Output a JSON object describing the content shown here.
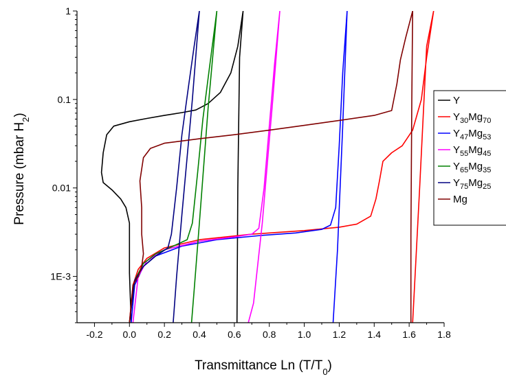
{
  "chart_data": {
    "type": "line",
    "title": "",
    "xlabel": {
      "main": "Transmittance Ln (T/T",
      "sub": "0",
      "tail": ")"
    },
    "ylabel": {
      "main": "Pressure (mbar H",
      "sub": "2",
      "tail": ")"
    },
    "xlim": [
      -0.3,
      1.8
    ],
    "ylim": [
      0.0003,
      1
    ],
    "yscale": "log",
    "xticks": [
      -0.2,
      0.0,
      0.2,
      0.4,
      0.6,
      0.8,
      1.0,
      1.2,
      1.4,
      1.6,
      1.8
    ],
    "xtick_labels": [
      "-0.2",
      "0.0",
      "0.2",
      "0.4",
      "0.6",
      "0.8",
      "1.0",
      "1.2",
      "1.4",
      "1.6",
      "1.8"
    ],
    "yticks": [
      0.001,
      0.01,
      0.1,
      1
    ],
    "ytick_labels": [
      "1E-3",
      "0.01",
      "0.1",
      "1"
    ],
    "grid": false,
    "legend_position": "right",
    "series": [
      {
        "name": "Y",
        "label_main": "Y",
        "label_parts": [],
        "color": "#000000",
        "points": [
          [
            0.01,
            0.0003
          ],
          [
            0.0,
            0.0011
          ],
          [
            0.0,
            0.002
          ],
          [
            0.0,
            0.004
          ],
          [
            -0.02,
            0.006
          ],
          [
            -0.05,
            0.0075
          ],
          [
            -0.1,
            0.0095
          ],
          [
            -0.15,
            0.0115
          ],
          [
            -0.16,
            0.015
          ],
          [
            -0.15,
            0.025
          ],
          [
            -0.13,
            0.04
          ],
          [
            -0.09,
            0.05
          ],
          [
            0.0,
            0.056
          ],
          [
            0.1,
            0.061
          ],
          [
            0.2,
            0.066
          ],
          [
            0.3,
            0.071
          ],
          [
            0.38,
            0.076
          ],
          [
            0.45,
            0.09
          ],
          [
            0.52,
            0.12
          ],
          [
            0.58,
            0.2
          ],
          [
            0.62,
            0.4
          ],
          [
            0.65,
            1.0
          ],
          [
            0.63,
            0.3
          ],
          [
            0.62,
            0.01
          ],
          [
            0.615,
            0.0003
          ]
        ]
      },
      {
        "name": "Y30Mg70",
        "label_main": "Y",
        "label_parts": [
          [
            "30",
            "sub"
          ],
          [
            "Mg",
            "main"
          ],
          [
            "70",
            "sub"
          ]
        ],
        "color": "#ff0000",
        "points": [
          [
            0.0,
            0.0003
          ],
          [
            0.02,
            0.0008
          ],
          [
            0.05,
            0.0012
          ],
          [
            0.1,
            0.0016
          ],
          [
            0.2,
            0.0021
          ],
          [
            0.4,
            0.0026
          ],
          [
            0.7,
            0.003
          ],
          [
            1.0,
            0.0033
          ],
          [
            1.2,
            0.0036
          ],
          [
            1.3,
            0.0039
          ],
          [
            1.38,
            0.0048
          ],
          [
            1.41,
            0.0075
          ],
          [
            1.43,
            0.012
          ],
          [
            1.45,
            0.02
          ],
          [
            1.5,
            0.025
          ],
          [
            1.56,
            0.03
          ],
          [
            1.62,
            0.045
          ],
          [
            1.67,
            0.1
          ],
          [
            1.7,
            0.3
          ],
          [
            1.74,
            1.0
          ],
          [
            1.7,
            0.4
          ],
          [
            1.66,
            0.01
          ],
          [
            1.62,
            0.0003
          ]
        ]
      },
      {
        "name": "Y47Mg53",
        "label_main": "Y",
        "label_parts": [
          [
            "47",
            "sub"
          ],
          [
            "Mg",
            "main"
          ],
          [
            "53",
            "sub"
          ]
        ],
        "color": "#0000ff",
        "points": [
          [
            0.01,
            0.0003
          ],
          [
            0.03,
            0.0008
          ],
          [
            0.08,
            0.0013
          ],
          [
            0.15,
            0.0017
          ],
          [
            0.3,
            0.0022
          ],
          [
            0.5,
            0.0026
          ],
          [
            0.75,
            0.0029
          ],
          [
            0.95,
            0.0031
          ],
          [
            1.1,
            0.0034
          ],
          [
            1.15,
            0.0038
          ],
          [
            1.18,
            0.006
          ],
          [
            1.2,
            0.03
          ],
          [
            1.22,
            0.2
          ],
          [
            1.245,
            1.0
          ],
          [
            1.22,
            0.05
          ],
          [
            1.19,
            0.002
          ],
          [
            1.165,
            0.0003
          ]
        ]
      },
      {
        "name": "Y55Mg45",
        "label_main": "Y",
        "label_parts": [
          [
            "55",
            "sub"
          ],
          [
            "Mg",
            "main"
          ],
          [
            "45",
            "sub"
          ]
        ],
        "color": "#ff00ff",
        "points": [
          [
            0.02,
            0.0003
          ],
          [
            0.05,
            0.001
          ],
          [
            0.1,
            0.0015
          ],
          [
            0.2,
            0.002
          ],
          [
            0.4,
            0.0025
          ],
          [
            0.6,
            0.0028
          ],
          [
            0.7,
            0.003
          ],
          [
            0.74,
            0.0035
          ],
          [
            0.77,
            0.01
          ],
          [
            0.8,
            0.05
          ],
          [
            0.83,
            0.25
          ],
          [
            0.86,
            1.0
          ],
          [
            0.82,
            0.1
          ],
          [
            0.76,
            0.004
          ],
          [
            0.71,
            0.0005
          ],
          [
            0.68,
            0.0003
          ]
        ]
      },
      {
        "name": "Y65Mg35",
        "label_main": "Y",
        "label_parts": [
          [
            "65",
            "sub"
          ],
          [
            "Mg",
            "main"
          ],
          [
            "35",
            "sub"
          ]
        ],
        "color": "#008000",
        "points": [
          [
            0.0,
            0.0003
          ],
          [
            0.03,
            0.0009
          ],
          [
            0.08,
            0.0014
          ],
          [
            0.15,
            0.0018
          ],
          [
            0.25,
            0.0022
          ],
          [
            0.33,
            0.0026
          ],
          [
            0.36,
            0.004
          ],
          [
            0.39,
            0.015
          ],
          [
            0.42,
            0.06
          ],
          [
            0.46,
            0.25
          ],
          [
            0.5,
            1.0
          ],
          [
            0.45,
            0.08
          ],
          [
            0.4,
            0.004
          ],
          [
            0.37,
            0.0007
          ],
          [
            0.355,
            0.0003
          ]
        ]
      },
      {
        "name": "Y75Mg25",
        "label_main": "Y",
        "label_parts": [
          [
            "75",
            "sub"
          ],
          [
            "Mg",
            "main"
          ],
          [
            "25",
            "sub"
          ]
        ],
        "color": "#000080",
        "points": [
          [
            0.0,
            0.0003
          ],
          [
            0.03,
            0.0009
          ],
          [
            0.08,
            0.0013
          ],
          [
            0.15,
            0.0017
          ],
          [
            0.22,
            0.0021
          ],
          [
            0.24,
            0.003
          ],
          [
            0.27,
            0.01
          ],
          [
            0.3,
            0.04
          ],
          [
            0.34,
            0.15
          ],
          [
            0.37,
            0.4
          ],
          [
            0.4,
            1.0
          ],
          [
            0.36,
            0.1
          ],
          [
            0.3,
            0.005
          ],
          [
            0.27,
            0.001
          ],
          [
            0.25,
            0.0003
          ]
        ]
      },
      {
        "name": "Mg",
        "label_main": "Mg",
        "label_parts": [],
        "color": "#800000",
        "points": [
          [
            0.0,
            0.0003
          ],
          [
            0.02,
            0.0008
          ],
          [
            0.05,
            0.001
          ],
          [
            0.07,
            0.0013
          ],
          [
            0.08,
            0.0018
          ],
          [
            0.07,
            0.003
          ],
          [
            0.07,
            0.006
          ],
          [
            0.06,
            0.012
          ],
          [
            0.08,
            0.022
          ],
          [
            0.12,
            0.028
          ],
          [
            0.2,
            0.032
          ],
          [
            0.4,
            0.036
          ],
          [
            0.6,
            0.04
          ],
          [
            0.8,
            0.045
          ],
          [
            1.0,
            0.051
          ],
          [
            1.2,
            0.058
          ],
          [
            1.4,
            0.066
          ],
          [
            1.5,
            0.075
          ],
          [
            1.53,
            0.15
          ],
          [
            1.55,
            0.28
          ],
          [
            1.58,
            0.5
          ],
          [
            1.62,
            1.0
          ],
          [
            1.615,
            0.1
          ],
          [
            1.61,
            0.003
          ],
          [
            1.61,
            0.0003
          ]
        ]
      }
    ]
  }
}
